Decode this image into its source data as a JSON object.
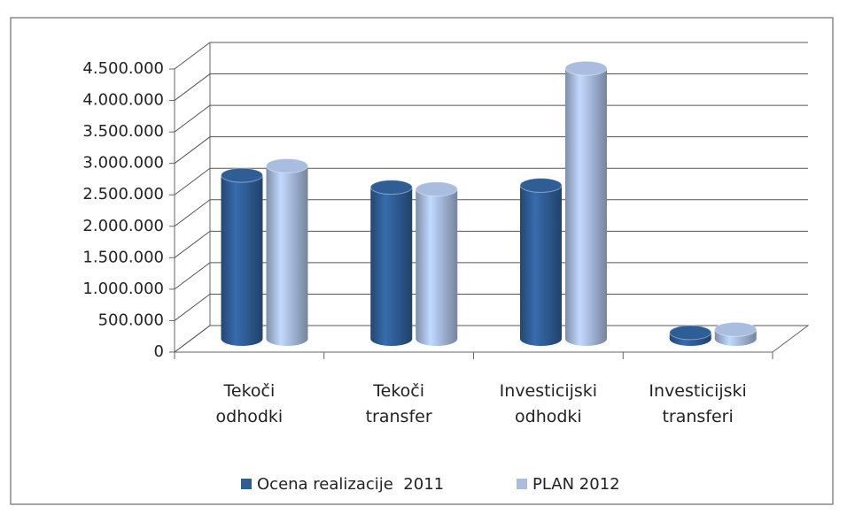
{
  "chart_data": {
    "type": "bar3d",
    "categories": [
      "Tekoči odhodki",
      "Tekoči transfer",
      "Investicijski odhodki",
      "Investicijski transferi"
    ],
    "series": [
      {
        "name": "Ocena realizacije  2011",
        "color": "#2f5e97",
        "values": [
          2600000,
          2410000,
          2440000,
          100000
        ]
      },
      {
        "name": "PLAN 2012",
        "color": "#a9bde0",
        "values": [
          2750000,
          2380000,
          4300000,
          150000
        ]
      }
    ],
    "ylim": [
      0,
      4500000
    ],
    "yticks": [
      0,
      {
        "value": 500000,
        "label": "500.000"
      },
      {
        "value": 1000000,
        "label": "1.000.000"
      },
      {
        "value": 1500000,
        "label": "1.500.000"
      },
      {
        "value": 2000000,
        "label": "2.000.000"
      },
      {
        "value": 2500000,
        "label": "2.500.000"
      },
      {
        "value": 3000000,
        "label": "3.000.000"
      },
      {
        "value": 3500000,
        "label": "3.500.000"
      },
      {
        "value": 4000000,
        "label": "4.000.000"
      },
      {
        "value": 4500000,
        "label": "4.500.000"
      }
    ],
    "grid": true,
    "legend": "bottom"
  }
}
